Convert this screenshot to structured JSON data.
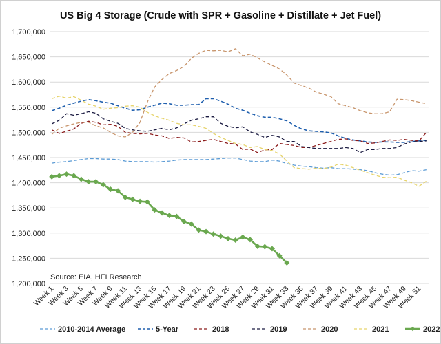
{
  "chart_data": {
    "type": "line",
    "title": "US Big 4 Storage (Crude with SPR + Gasoline + Distillate + Jet Fuel)",
    "source": "Source: EIA, HFI Research",
    "ylim": [
      1200000,
      1700000
    ],
    "yticks": [
      "1,200,000",
      "1,250,000",
      "1,300,000",
      "1,350,000",
      "1,400,000",
      "1,450,000",
      "1,500,000",
      "1,550,000",
      "1,600,000",
      "1,650,000",
      "1,700,000"
    ],
    "ytick_values": [
      1200000,
      1250000,
      1300000,
      1350000,
      1400000,
      1450000,
      1500000,
      1550000,
      1600000,
      1650000,
      1700000
    ],
    "xtick_labels": [
      "Week 1",
      "Week 3",
      "Week 5",
      "Week 7",
      "Week 9",
      "Week 11",
      "Week 13",
      "Week 15",
      "Week 17",
      "Week 19",
      "Week 21",
      "Week 23",
      "Week 25",
      "Week 27",
      "Week 29",
      "Week 31",
      "Week 33",
      "Week 35",
      "Week 37",
      "Week 39",
      "Week 41",
      "Week 43",
      "Week 45",
      "Week 47",
      "Week 49",
      "Week 51"
    ],
    "x_count": 52,
    "grid": "horizontal",
    "legend_position": "bottom",
    "series": [
      {
        "name": "2010-2014 Average",
        "color": "#5b9bd5",
        "dash": "dashed",
        "width": 1.3,
        "marker": false,
        "values": [
          1439000,
          1441000,
          1442000,
          1444000,
          1446000,
          1448000,
          1448000,
          1447000,
          1447000,
          1446000,
          1443000,
          1442000,
          1442000,
          1442000,
          1441000,
          1442000,
          1443000,
          1445000,
          1446000,
          1446000,
          1446000,
          1446000,
          1447000,
          1448000,
          1449000,
          1449000,
          1446000,
          1443000,
          1442000,
          1442000,
          1445000,
          1443000,
          1438000,
          1435000,
          1433000,
          1432000,
          1430000,
          1429000,
          1430000,
          1428000,
          1428000,
          1427000,
          1426000,
          1424000,
          1420000,
          1417000,
          1415000,
          1416000,
          1420000,
          1424000,
          1423000,
          1426000
        ]
      },
      {
        "name": "5-Year",
        "color": "#1f5fae",
        "dash": "dashed",
        "width": 1.6,
        "marker": false,
        "values": [
          1543000,
          1548000,
          1554000,
          1558000,
          1562000,
          1565000,
          1563000,
          1560000,
          1558000,
          1553000,
          1548000,
          1544000,
          1545000,
          1550000,
          1554000,
          1558000,
          1557000,
          1554000,
          1554000,
          1555000,
          1555000,
          1567000,
          1567000,
          1562000,
          1556000,
          1548000,
          1544000,
          1538000,
          1533000,
          1530000,
          1530000,
          1527000,
          1523000,
          1514000,
          1507000,
          1503000,
          1502000,
          1501000,
          1499000,
          1493000,
          1488000,
          1485000,
          1483000,
          1481000,
          1480000,
          1481000,
          1481000,
          1480000,
          1480000,
          1482000,
          1483000,
          1484000
        ]
      },
      {
        "name": "2018",
        "color": "#8b1a1a",
        "dash": "dashed",
        "width": 1.3,
        "marker": false,
        "values": [
          1505000,
          1498000,
          1502000,
          1507000,
          1518000,
          1522000,
          1520000,
          1515000,
          1516000,
          1512000,
          1500000,
          1498000,
          1497000,
          1498000,
          1495000,
          1493000,
          1488000,
          1490000,
          1489000,
          1481000,
          1482000,
          1484000,
          1486000,
          1482000,
          1478000,
          1477000,
          1466000,
          1467000,
          1460000,
          1465000,
          1466000,
          1478000,
          1476000,
          1474000,
          1470000,
          1470000,
          1474000,
          1478000,
          1482000,
          1486000,
          1487000,
          1484000,
          1483000,
          1478000,
          1479000,
          1482000,
          1485000,
          1484000,
          1486000,
          1484000,
          1483000,
          1500000
        ]
      },
      {
        "name": "2019",
        "color": "#1a1a40",
        "dash": "dashed",
        "width": 1.3,
        "marker": false,
        "values": [
          1517000,
          1524000,
          1537000,
          1534000,
          1537000,
          1541000,
          1538000,
          1527000,
          1522000,
          1518000,
          1508000,
          1505000,
          1503000,
          1502000,
          1505000,
          1508000,
          1505000,
          1509000,
          1517000,
          1524000,
          1527000,
          1531000,
          1531000,
          1518000,
          1512000,
          1509000,
          1511000,
          1501000,
          1496000,
          1490000,
          1494000,
          1491000,
          1482000,
          1482000,
          1472000,
          1470000,
          1468000,
          1468000,
          1468000,
          1468000,
          1470000,
          1468000,
          1460000,
          1466000,
          1466000,
          1468000,
          1468000,
          1470000,
          1477000,
          1481000,
          1482000,
          1483000
        ]
      },
      {
        "name": "2020",
        "color": "#c8956c",
        "dash": "dashed",
        "width": 1.3,
        "marker": false,
        "values": [
          1496000,
          1508000,
          1513000,
          1517000,
          1520000,
          1520000,
          1513000,
          1509000,
          1500000,
          1493000,
          1491000,
          1500000,
          1520000,
          1560000,
          1590000,
          1605000,
          1617000,
          1623000,
          1631000,
          1647000,
          1657000,
          1663000,
          1662000,
          1663000,
          1660000,
          1666000,
          1652000,
          1655000,
          1648000,
          1640000,
          1633000,
          1626000,
          1614000,
          1598000,
          1593000,
          1588000,
          1580000,
          1576000,
          1571000,
          1557000,
          1553000,
          1549000,
          1543000,
          1539000,
          1537000,
          1537000,
          1541000,
          1566000,
          1565000,
          1563000,
          1560000,
          1557000
        ]
      },
      {
        "name": "2021",
        "color": "#e6d36a",
        "dash": "dashed",
        "width": 1.3,
        "marker": false,
        "values": [
          1567000,
          1572000,
          1568000,
          1571000,
          1564000,
          1556000,
          1552000,
          1546000,
          1548000,
          1549000,
          1552000,
          1553000,
          1550000,
          1540000,
          1533000,
          1528000,
          1524000,
          1518000,
          1515000,
          1515000,
          1512000,
          1508000,
          1498000,
          1490000,
          1484000,
          1478000,
          1476000,
          1470000,
          1472000,
          1466000,
          1464000,
          1457000,
          1443000,
          1430000,
          1428000,
          1427000,
          1429000,
          1428000,
          1431000,
          1437000,
          1435000,
          1430000,
          1425000,
          1420000,
          1415000,
          1411000,
          1410000,
          1411000,
          1405000,
          1400000,
          1393000,
          1403000
        ]
      },
      {
        "name": "2022",
        "color": "#6aa84f",
        "dash": "solid",
        "width": 2.6,
        "marker": true,
        "values": [
          1412000,
          1414000,
          1417000,
          1414000,
          1407000,
          1402000,
          1402000,
          1396000,
          1387000,
          1384000,
          1371000,
          1367000,
          1363000,
          1362000,
          1346000,
          1340000,
          1335000,
          1333000,
          1323000,
          1318000,
          1306000,
          1303000,
          1298000,
          1294000,
          1289000,
          1286000,
          1292000,
          1287000,
          1274000,
          1273000,
          1269000,
          1255000,
          1241000
        ]
      }
    ]
  }
}
